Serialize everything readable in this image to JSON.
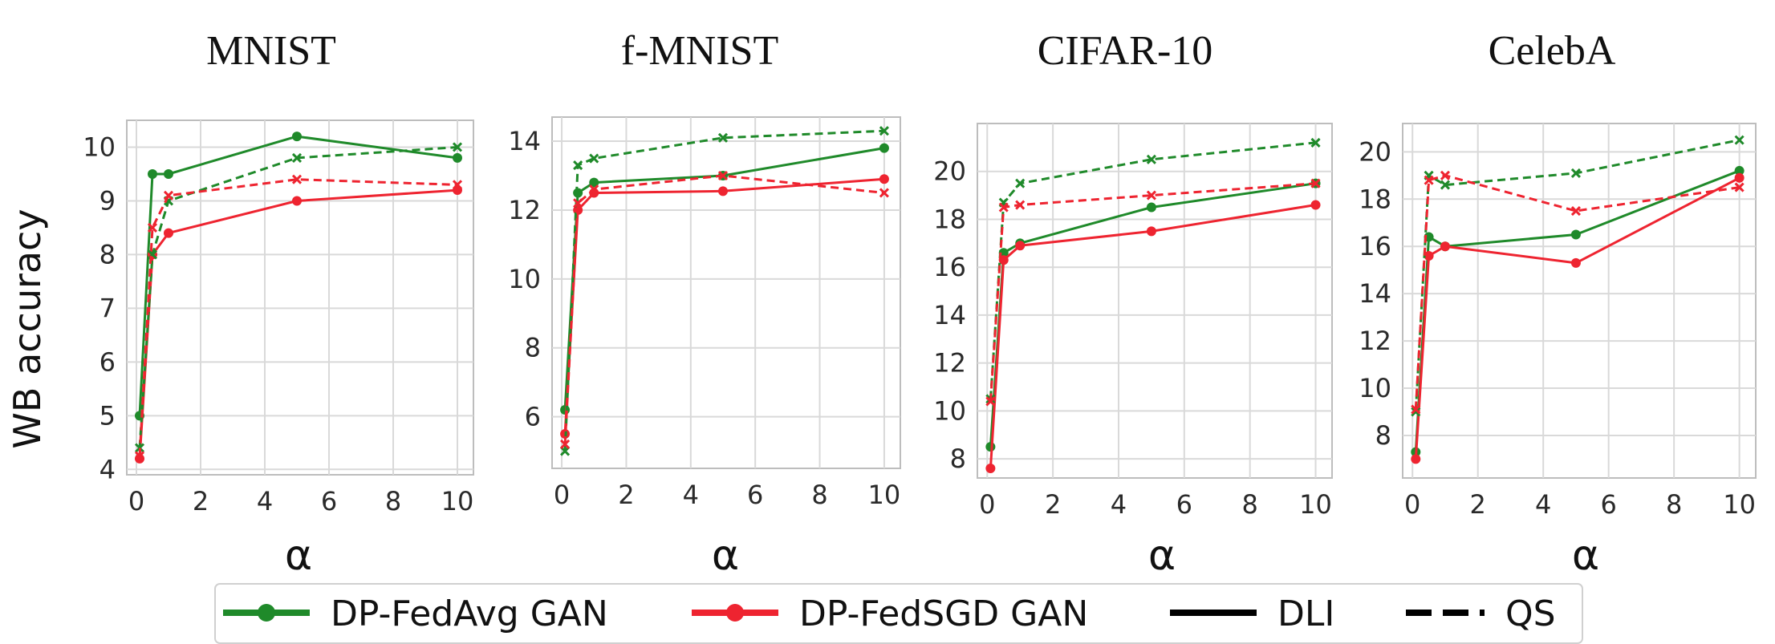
{
  "ylabel": "WB accuracy",
  "colors": {
    "fedavg": "#1f8a2a",
    "fedsgd": "#ee2430",
    "ink": "#000000",
    "grid": "#d9d9d9",
    "frame": "#bdbdbd"
  },
  "legend": {
    "items": [
      {
        "label": "DP-FedAvg GAN",
        "color": "#1f8a2a",
        "style": "solid",
        "marker": "dot"
      },
      {
        "label": "DP-FedSGD GAN",
        "color": "#ee2430",
        "style": "solid",
        "marker": "dot"
      },
      {
        "label": "DLI",
        "color": "#000000",
        "style": "solid",
        "marker": "none"
      },
      {
        "label": "QS",
        "color": "#000000",
        "style": "dashed",
        "marker": "none"
      }
    ]
  },
  "chart_data": [
    {
      "type": "line",
      "title": "MNIST",
      "xlabel": "α",
      "ylabel": "WB accuracy",
      "x": [
        0.1,
        0.5,
        1,
        5,
        10
      ],
      "xlim": [
        -0.3,
        10.5
      ],
      "ylim": [
        3.9,
        10.5
      ],
      "xticks": [
        0,
        2,
        4,
        6,
        8,
        10
      ],
      "yticks": [
        4,
        5,
        6,
        7,
        8,
        9,
        10
      ],
      "series": [
        {
          "name": "DP-FedAvg GAN",
          "metric": "DLI",
          "color": "#1f8a2a",
          "style": "solid",
          "marker": "dot",
          "values": [
            5.0,
            9.5,
            9.5,
            10.2,
            9.8
          ]
        },
        {
          "name": "DP-FedSGD GAN",
          "metric": "DLI",
          "color": "#ee2430",
          "style": "solid",
          "marker": "dot",
          "values": [
            4.2,
            8.0,
            8.4,
            9.0,
            9.2
          ]
        },
        {
          "name": "DP-FedAvg GAN",
          "metric": "QS",
          "color": "#1f8a2a",
          "style": "dashed",
          "marker": "x",
          "values": [
            4.4,
            8.0,
            9.0,
            9.8,
            10.0
          ]
        },
        {
          "name": "DP-FedSGD GAN",
          "metric": "QS",
          "color": "#ee2430",
          "style": "dashed",
          "marker": "x",
          "values": [
            4.25,
            8.5,
            9.1,
            9.4,
            9.3
          ]
        }
      ]
    },
    {
      "type": "line",
      "title": "f-MNIST",
      "xlabel": "α",
      "ylabel": "",
      "x": [
        0.1,
        0.5,
        1,
        5,
        10
      ],
      "xlim": [
        -0.3,
        10.5
      ],
      "ylim": [
        4.5,
        14.7
      ],
      "xticks": [
        0,
        2,
        4,
        6,
        8,
        10
      ],
      "yticks": [
        6,
        8,
        10,
        12,
        14
      ],
      "series": [
        {
          "name": "DP-FedAvg GAN",
          "metric": "DLI",
          "color": "#1f8a2a",
          "style": "solid",
          "marker": "dot",
          "values": [
            6.2,
            12.5,
            12.8,
            13.0,
            13.8
          ]
        },
        {
          "name": "DP-FedSGD GAN",
          "metric": "DLI",
          "color": "#ee2430",
          "style": "solid",
          "marker": "dot",
          "values": [
            5.5,
            12.0,
            12.5,
            12.55,
            12.9
          ]
        },
        {
          "name": "DP-FedAvg GAN",
          "metric": "QS",
          "color": "#1f8a2a",
          "style": "dashed",
          "marker": "x",
          "values": [
            5.0,
            13.3,
            13.5,
            14.1,
            14.3
          ]
        },
        {
          "name": "DP-FedSGD GAN",
          "metric": "QS",
          "color": "#ee2430",
          "style": "dashed",
          "marker": "x",
          "values": [
            5.2,
            12.2,
            12.6,
            13.0,
            12.5
          ]
        }
      ]
    },
    {
      "type": "line",
      "title": "CIFAR-10",
      "xlabel": "α",
      "ylabel": "",
      "x": [
        0.1,
        0.5,
        1,
        5,
        10
      ],
      "xlim": [
        -0.3,
        10.5
      ],
      "ylim": [
        7.2,
        22.0
      ],
      "xticks": [
        0,
        2,
        4,
        6,
        8,
        10
      ],
      "yticks": [
        8,
        10,
        12,
        14,
        16,
        18,
        20
      ],
      "series": [
        {
          "name": "DP-FedAvg GAN",
          "metric": "DLI",
          "color": "#1f8a2a",
          "style": "solid",
          "marker": "dot",
          "values": [
            8.5,
            16.6,
            17.0,
            18.5,
            19.5
          ]
        },
        {
          "name": "DP-FedSGD GAN",
          "metric": "DLI",
          "color": "#ee2430",
          "style": "solid",
          "marker": "dot",
          "values": [
            7.6,
            16.3,
            16.9,
            17.5,
            18.6
          ]
        },
        {
          "name": "DP-FedAvg GAN",
          "metric": "QS",
          "color": "#1f8a2a",
          "style": "dashed",
          "marker": "x",
          "values": [
            10.5,
            18.7,
            19.5,
            20.5,
            21.2
          ]
        },
        {
          "name": "DP-FedSGD GAN",
          "metric": "QS",
          "color": "#ee2430",
          "style": "dashed",
          "marker": "x",
          "values": [
            10.4,
            18.5,
            18.6,
            19.0,
            19.5
          ]
        }
      ]
    },
    {
      "type": "line",
      "title": "CelebA",
      "xlabel": "α",
      "ylabel": "",
      "x": [
        0.1,
        0.5,
        1,
        5,
        10
      ],
      "xlim": [
        -0.3,
        10.5
      ],
      "ylim": [
        6.2,
        21.2
      ],
      "xticks": [
        0,
        2,
        4,
        6,
        8,
        10
      ],
      "yticks": [
        8,
        10,
        12,
        14,
        16,
        18,
        20
      ],
      "series": [
        {
          "name": "DP-FedAvg GAN",
          "metric": "DLI",
          "color": "#1f8a2a",
          "style": "solid",
          "marker": "dot",
          "values": [
            7.3,
            16.4,
            16.0,
            16.5,
            19.2
          ]
        },
        {
          "name": "DP-FedSGD GAN",
          "metric": "DLI",
          "color": "#ee2430",
          "style": "solid",
          "marker": "dot",
          "values": [
            7.0,
            15.6,
            16.0,
            15.3,
            18.9
          ]
        },
        {
          "name": "DP-FedAvg GAN",
          "metric": "QS",
          "color": "#1f8a2a",
          "style": "dashed",
          "marker": "x",
          "values": [
            9.0,
            19.0,
            18.6,
            19.1,
            20.5
          ]
        },
        {
          "name": "DP-FedSGD GAN",
          "metric": "QS",
          "color": "#ee2430",
          "style": "dashed",
          "marker": "x",
          "values": [
            9.1,
            18.8,
            19.0,
            17.5,
            18.5
          ]
        }
      ]
    }
  ]
}
